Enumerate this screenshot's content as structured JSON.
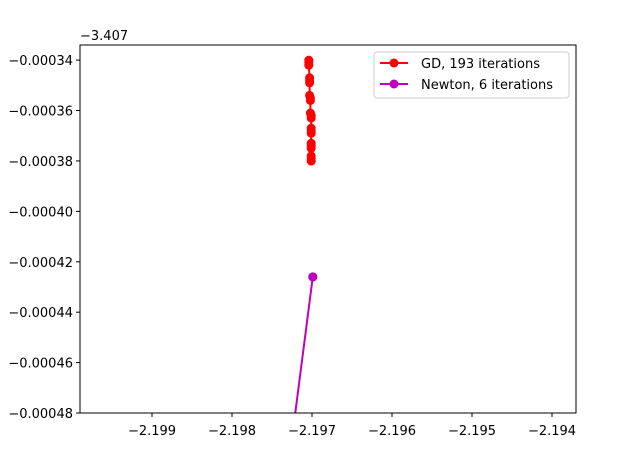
{
  "chart_data": {
    "type": "line",
    "title": "",
    "xlabel": "",
    "ylabel": "",
    "xlim": [
      -2.1999,
      -2.1937
    ],
    "ylim": [
      -0.00048,
      -0.000334
    ],
    "y_offset_label": "−3.407",
    "x_ticks": [
      -2.199,
      -2.198,
      -2.197,
      -2.196,
      -2.195,
      -2.194
    ],
    "x_tick_labels": [
      "−2.199",
      "−2.198",
      "−2.197",
      "−2.196",
      "−2.195",
      "−2.194"
    ],
    "y_ticks": [
      -0.00034,
      -0.00036,
      -0.00038,
      -0.0004,
      -0.00042,
      -0.00044,
      -0.00046,
      -0.00048
    ],
    "y_tick_labels": [
      "−0.00034",
      "−0.00036",
      "−0.00038",
      "−0.00040",
      "−0.00042",
      "−0.00044",
      "−0.00046",
      "−0.00048"
    ],
    "grid": false,
    "legend": "top-right",
    "series": [
      {
        "name": "GD, 193 iterations",
        "color": "#ff0000",
        "marker": "circle",
        "x": [
          -2.19704,
          -2.19704,
          -2.19704,
          -2.19703,
          -2.19703,
          -2.19703,
          -2.19703,
          -2.19702,
          -2.19702,
          -2.19702,
          -2.19701,
          -2.19701,
          -2.19701,
          -2.19701,
          -2.19701,
          -2.19701,
          -2.19701,
          -2.19701,
          -2.19701,
          -2.19701,
          -2.19701,
          -2.19701
        ],
        "y": [
          -0.00034,
          -0.000341,
          -0.000342,
          -0.000347,
          -0.000348,
          -0.000349,
          -0.000354,
          -0.000355,
          -0.000356,
          -0.000361,
          -0.000362,
          -0.000363,
          -0.000367,
          -0.000368,
          -0.000369,
          -0.000373,
          -0.000374,
          -0.000375,
          -0.000378,
          -0.000379,
          -0.00038,
          -0.00038
        ]
      },
      {
        "name": "Newton, 6 iterations",
        "color": "#bf00bf",
        "marker": "circle",
        "x": [
          -2.19725,
          -2.19699,
          -2.19699
        ],
        "y": [
          -0.00049,
          -0.000426,
          -0.000426
        ]
      }
    ]
  }
}
